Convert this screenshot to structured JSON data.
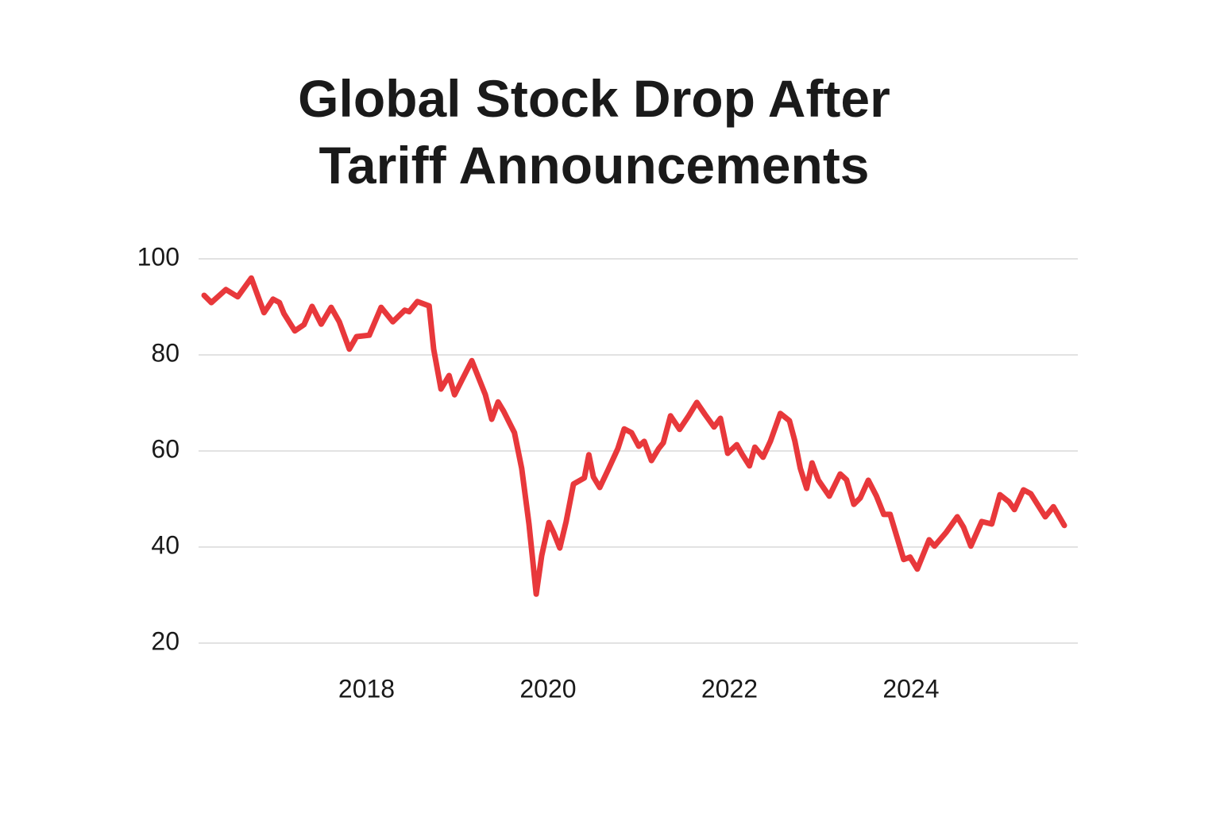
{
  "chart_data": {
    "type": "line",
    "title": "Global Stock Drop After Tariff Announcements",
    "x": [
      2016.21,
      2016.29,
      2016.45,
      2016.58,
      2016.73,
      2016.87,
      2016.97,
      2017.04,
      2017.09,
      2017.21,
      2017.31,
      2017.4,
      2017.5,
      2017.61,
      2017.7,
      2017.81,
      2017.89,
      2018.03,
      2018.16,
      2018.29,
      2018.42,
      2018.47,
      2018.56,
      2018.69,
      2018.74,
      2018.82,
      2018.91,
      2018.97,
      2019.05,
      2019.16,
      2019.31,
      2019.38,
      2019.45,
      2019.51,
      2019.63,
      2019.71,
      2019.79,
      2019.87,
      2019.93,
      2020.01,
      2020.06,
      2020.13,
      2020.2,
      2020.28,
      2020.4,
      2020.45,
      2020.5,
      2020.57,
      2020.66,
      2020.77,
      2020.84,
      2020.92,
      2021.0,
      2021.06,
      2021.14,
      2021.22,
      2021.27,
      2021.35,
      2021.45,
      2021.55,
      2021.64,
      2021.73,
      2021.83,
      2021.9,
      2021.98,
      2022.08,
      2022.14,
      2022.22,
      2022.28,
      2022.37,
      2022.45,
      2022.56,
      2022.66,
      2022.72,
      2022.78,
      2022.85,
      2022.91,
      2022.98,
      2023.1,
      2023.22,
      2023.29,
      2023.37,
      2023.44,
      2023.53,
      2023.62,
      2023.7,
      2023.77,
      2023.92,
      2023.99,
      2024.07,
      2024.2,
      2024.26,
      2024.39,
      2024.51,
      2024.58,
      2024.66,
      2024.78,
      2024.89,
      2024.98,
      2025.08,
      2025.14,
      2025.24,
      2025.32,
      2025.48,
      2025.57,
      2025.69
    ],
    "series": [
      {
        "color": "#e8383b",
        "values": [
          92.4,
          90.9,
          93.6,
          92.1,
          96.0,
          88.8,
          91.6,
          90.9,
          88.6,
          85.0,
          86.3,
          90.1,
          86.4,
          89.9,
          86.9,
          81.2,
          83.8,
          84.1,
          89.9,
          86.9,
          89.3,
          89.0,
          91.1,
          90.2,
          81.2,
          72.9,
          75.7,
          71.7,
          74.7,
          78.8,
          71.7,
          66.6,
          70.2,
          68.3,
          63.8,
          56.4,
          44.8,
          30.2,
          38.2,
          45.1,
          43.1,
          39.8,
          45.3,
          53.1,
          54.4,
          59.2,
          54.6,
          52.4,
          56.0,
          60.5,
          64.6,
          63.8,
          61.0,
          62.0,
          58.0,
          60.5,
          61.7,
          67.3,
          64.5,
          67.3,
          70.1,
          67.6,
          65.0,
          66.8,
          59.5,
          61.3,
          59.3,
          56.9,
          60.8,
          58.7,
          62.0,
          67.8,
          66.3,
          62.1,
          56.4,
          52.2,
          57.5,
          53.9,
          50.6,
          55.2,
          54.0,
          48.9,
          50.2,
          53.9,
          50.6,
          46.8,
          46.8,
          37.4,
          37.9,
          35.4,
          41.5,
          40.2,
          43.1,
          46.3,
          44.1,
          40.2,
          45.3,
          44.8,
          50.9,
          49.4,
          47.8,
          51.9,
          51.1,
          46.3,
          48.4,
          44.5
        ]
      }
    ],
    "xlim": [
      2016.21,
      2025.69
    ],
    "xticks": [
      2018,
      2020,
      2022,
      2024
    ],
    "ylim": [
      20,
      100
    ],
    "yticks": [
      20,
      40,
      60,
      80,
      100
    ],
    "grid": true
  }
}
